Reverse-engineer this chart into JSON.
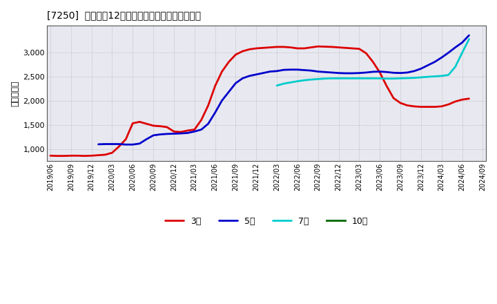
{
  "title": "[7250]  経常利益12か月移動合計の標準偏差の推移",
  "ylabel": "（百万円）",
  "ylim": [
    750,
    3550
  ],
  "yticks": [
    1000,
    1500,
    2000,
    2500,
    3000
  ],
  "plot_bg_color": "#e8e8f0",
  "fig_bg_color": "#ffffff",
  "grid_color": "#888888",
  "series_3yr": {
    "color": "#dd0000",
    "x": [
      0,
      1,
      2,
      3,
      4,
      5,
      6,
      7,
      8,
      9,
      10,
      11,
      12,
      13,
      14,
      15,
      16,
      17,
      18,
      19,
      20,
      21,
      22,
      23,
      24,
      25,
      26,
      27,
      28,
      29,
      30,
      31,
      32,
      33,
      34,
      35,
      36,
      37,
      38,
      39,
      40,
      41,
      42,
      43,
      44,
      45,
      46,
      47,
      48,
      49,
      50,
      51,
      52,
      53,
      54,
      55,
      56,
      57,
      58,
      59,
      60,
      61
    ],
    "y": [
      860,
      855,
      855,
      860,
      860,
      855,
      860,
      870,
      880,
      920,
      1050,
      1200,
      1530,
      1560,
      1520,
      1480,
      1470,
      1450,
      1360,
      1350,
      1380,
      1400,
      1600,
      1900,
      2300,
      2600,
      2800,
      2950,
      3020,
      3060,
      3080,
      3090,
      3100,
      3110,
      3110,
      3100,
      3080,
      3080,
      3100,
      3120,
      3115,
      3110,
      3100,
      3090,
      3080,
      3070,
      2980,
      2800,
      2580,
      2300,
      2050,
      1950,
      1900,
      1880,
      1870,
      1870,
      1870,
      1880,
      1920,
      1980,
      2020,
      2040
    ],
    "label": "3年"
  },
  "series_5yr": {
    "color": "#0000cc",
    "x": [
      7,
      8,
      9,
      10,
      11,
      12,
      13,
      14,
      15,
      16,
      17,
      18,
      19,
      20,
      21,
      22,
      23,
      24,
      25,
      26,
      27,
      28,
      29,
      30,
      31,
      32,
      33,
      34,
      35,
      36,
      37,
      38,
      39,
      40,
      41,
      42,
      43,
      44,
      45,
      46,
      47,
      48,
      49,
      50,
      51,
      52,
      53,
      54,
      55,
      56,
      57,
      58,
      59,
      60,
      61
    ],
    "y": [
      1095,
      1100,
      1100,
      1100,
      1090,
      1090,
      1110,
      1200,
      1280,
      1300,
      1310,
      1315,
      1320,
      1330,
      1360,
      1400,
      1520,
      1750,
      2000,
      2180,
      2360,
      2460,
      2510,
      2540,
      2570,
      2600,
      2610,
      2635,
      2640,
      2640,
      2630,
      2620,
      2600,
      2590,
      2580,
      2570,
      2565,
      2565,
      2570,
      2580,
      2595,
      2600,
      2590,
      2575,
      2570,
      2580,
      2610,
      2660,
      2730,
      2800,
      2890,
      2990,
      3100,
      3200,
      3350
    ],
    "label": "5年"
  },
  "series_7yr": {
    "color": "#00cccc",
    "x": [
      33,
      34,
      35,
      36,
      37,
      38,
      39,
      40,
      41,
      42,
      43,
      44,
      45,
      46,
      47,
      48,
      49,
      50,
      51,
      52,
      53,
      54,
      55,
      56,
      57,
      58,
      59,
      60,
      61
    ],
    "y": [
      2310,
      2350,
      2375,
      2400,
      2420,
      2435,
      2445,
      2455,
      2460,
      2460,
      2460,
      2460,
      2460,
      2460,
      2460,
      2460,
      2455,
      2455,
      2460,
      2465,
      2470,
      2480,
      2492,
      2500,
      2510,
      2530,
      2700,
      2990,
      3270
    ],
    "label": "7年"
  },
  "series_10yr": {
    "color": "#006600",
    "x": [],
    "y": [],
    "label": "10年"
  },
  "xtick_labels": [
    "2019/06",
    "2019/09",
    "2019/12",
    "2020/03",
    "2020/06",
    "2020/09",
    "2020/12",
    "2021/03",
    "2021/06",
    "2021/09",
    "2021/12",
    "2022/03",
    "2022/06",
    "2022/09",
    "2022/12",
    "2023/03",
    "2023/06",
    "2023/09",
    "2023/12",
    "2024/03",
    "2024/06",
    "2024/09"
  ],
  "xtick_positions": [
    0,
    3,
    6,
    9,
    12,
    15,
    18,
    21,
    24,
    27,
    30,
    33,
    36,
    39,
    42,
    45,
    48,
    51,
    54,
    57,
    60,
    63
  ]
}
